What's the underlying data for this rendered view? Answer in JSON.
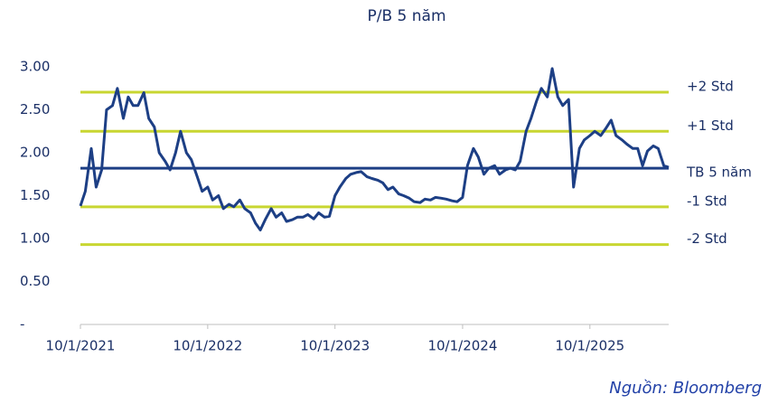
{
  "chart_data": {
    "type": "line",
    "title": "P/B 5 năm",
    "x": [
      "10/1/2021",
      "10/15/2021",
      "11/1/2021",
      "11/15/2021",
      "12/1/2021",
      "12/15/2021",
      "1/1/2022",
      "1/15/2022",
      "2/1/2022",
      "2/15/2022",
      "3/1/2022",
      "3/15/2022",
      "4/1/2022",
      "4/15/2022",
      "5/1/2022",
      "5/15/2022",
      "6/1/2022",
      "6/15/2022",
      "7/1/2022",
      "7/15/2022",
      "8/1/2022",
      "8/15/2022",
      "9/1/2022",
      "9/15/2022",
      "10/1/2022",
      "10/15/2022",
      "11/1/2022",
      "11/15/2022",
      "12/1/2022",
      "12/15/2022",
      "1/1/2023",
      "1/15/2023",
      "2/1/2023",
      "2/15/2023",
      "3/1/2023",
      "3/15/2023",
      "4/1/2023",
      "4/15/2023",
      "5/1/2023",
      "5/15/2023",
      "6/1/2023",
      "6/15/2023",
      "7/1/2023",
      "7/15/2023",
      "8/1/2023",
      "8/15/2023",
      "9/1/2023",
      "9/15/2023",
      "10/1/2023",
      "10/15/2023",
      "11/1/2023",
      "11/15/2023",
      "12/1/2023",
      "12/15/2023",
      "1/1/2024",
      "1/15/2024",
      "2/1/2024",
      "2/15/2024",
      "3/1/2024",
      "3/15/2024",
      "4/1/2024",
      "4/15/2024",
      "5/1/2024",
      "5/15/2024",
      "6/1/2024",
      "6/15/2024",
      "7/1/2024",
      "7/15/2024",
      "8/1/2024",
      "8/15/2024",
      "9/1/2024",
      "9/15/2024",
      "10/1/2024",
      "10/15/2024",
      "11/1/2024",
      "11/15/2024",
      "12/1/2024",
      "12/15/2024",
      "1/1/2025",
      "1/15/2025",
      "2/1/2025",
      "2/15/2025",
      "3/1/2025",
      "3/15/2025",
      "4/1/2025",
      "4/15/2025",
      "5/1/2025",
      "5/15/2025",
      "6/1/2025",
      "6/15/2025",
      "7/1/2025",
      "7/15/2025",
      "8/1/2025",
      "8/15/2025",
      "9/1/2025",
      "9/15/2025",
      "10/1/2025",
      "10/15/2025",
      "11/1/2025",
      "11/15/2025",
      "12/1/2025",
      "12/15/2025",
      "1/1/2026",
      "1/15/2026",
      "2/1/2026",
      "2/15/2026",
      "3/1/2026",
      "3/15/2026",
      "4/1/2026",
      "4/15/2026",
      "5/1/2026",
      "5/15/2026"
    ],
    "values": [
      1.38,
      1.55,
      2.05,
      1.6,
      1.8,
      2.5,
      2.55,
      2.75,
      2.4,
      2.65,
      2.55,
      2.55,
      2.7,
      2.4,
      2.3,
      2.0,
      1.9,
      1.8,
      2.0,
      2.25,
      2.0,
      1.92,
      1.72,
      1.55,
      1.6,
      1.45,
      1.5,
      1.35,
      1.4,
      1.37,
      1.45,
      1.35,
      1.3,
      1.18,
      1.1,
      1.22,
      1.35,
      1.25,
      1.3,
      1.2,
      1.22,
      1.25,
      1.25,
      1.28,
      1.23,
      1.3,
      1.25,
      1.26,
      1.5,
      1.6,
      1.7,
      1.75,
      1.77,
      1.78,
      1.72,
      1.7,
      1.68,
      1.65,
      1.57,
      1.6,
      1.52,
      1.5,
      1.47,
      1.43,
      1.42,
      1.46,
      1.45,
      1.48,
      1.47,
      1.46,
      1.44,
      1.43,
      1.48,
      1.85,
      2.05,
      1.95,
      1.75,
      1.82,
      1.85,
      1.75,
      1.8,
      1.82,
      1.8,
      1.9,
      2.25,
      2.4,
      2.6,
      2.75,
      2.65,
      2.98,
      2.65,
      2.55,
      2.62,
      1.6,
      2.05,
      2.15,
      2.2,
      2.25,
      2.2,
      2.28,
      2.38,
      2.2,
      2.15,
      2.1,
      2.05,
      2.05,
      1.85,
      2.02,
      2.08,
      2.05,
      1.85,
      1.83
    ],
    "color": "#1d3f85",
    "xlim": [
      "10/1/2021",
      "5/15/2026"
    ],
    "xticks": [
      "10/1/2021",
      "10/1/2022",
      "10/1/2023",
      "10/1/2024",
      "10/1/2025"
    ],
    "ylim": [
      0,
      3
    ],
    "yticks": [
      {
        "value": 0,
        "label": "-"
      },
      {
        "value": 0.5,
        "label": "0.50"
      },
      {
        "value": 1,
        "label": "1.00"
      },
      {
        "value": 1.5,
        "label": "1.50"
      },
      {
        "value": 2,
        "label": "2.00"
      },
      {
        "value": 2.5,
        "label": "2.50"
      },
      {
        "value": 3,
        "label": "3.00"
      }
    ],
    "reference_lines": [
      {
        "label": "+2 Std",
        "value": 2.705,
        "color": "#c8d631"
      },
      {
        "label": "+1 Std",
        "value": 2.25,
        "color": "#c8d631"
      },
      {
        "label": "TB 5 năm",
        "value": 1.82,
        "color": "#1d3f85"
      },
      {
        "label": "-1 Std",
        "value": 1.37,
        "color": "#c8d631"
      },
      {
        "label": "-2 Std",
        "value": 0.93,
        "color": "#c8d631"
      }
    ],
    "source": "Nguồn: Bloomberg"
  }
}
